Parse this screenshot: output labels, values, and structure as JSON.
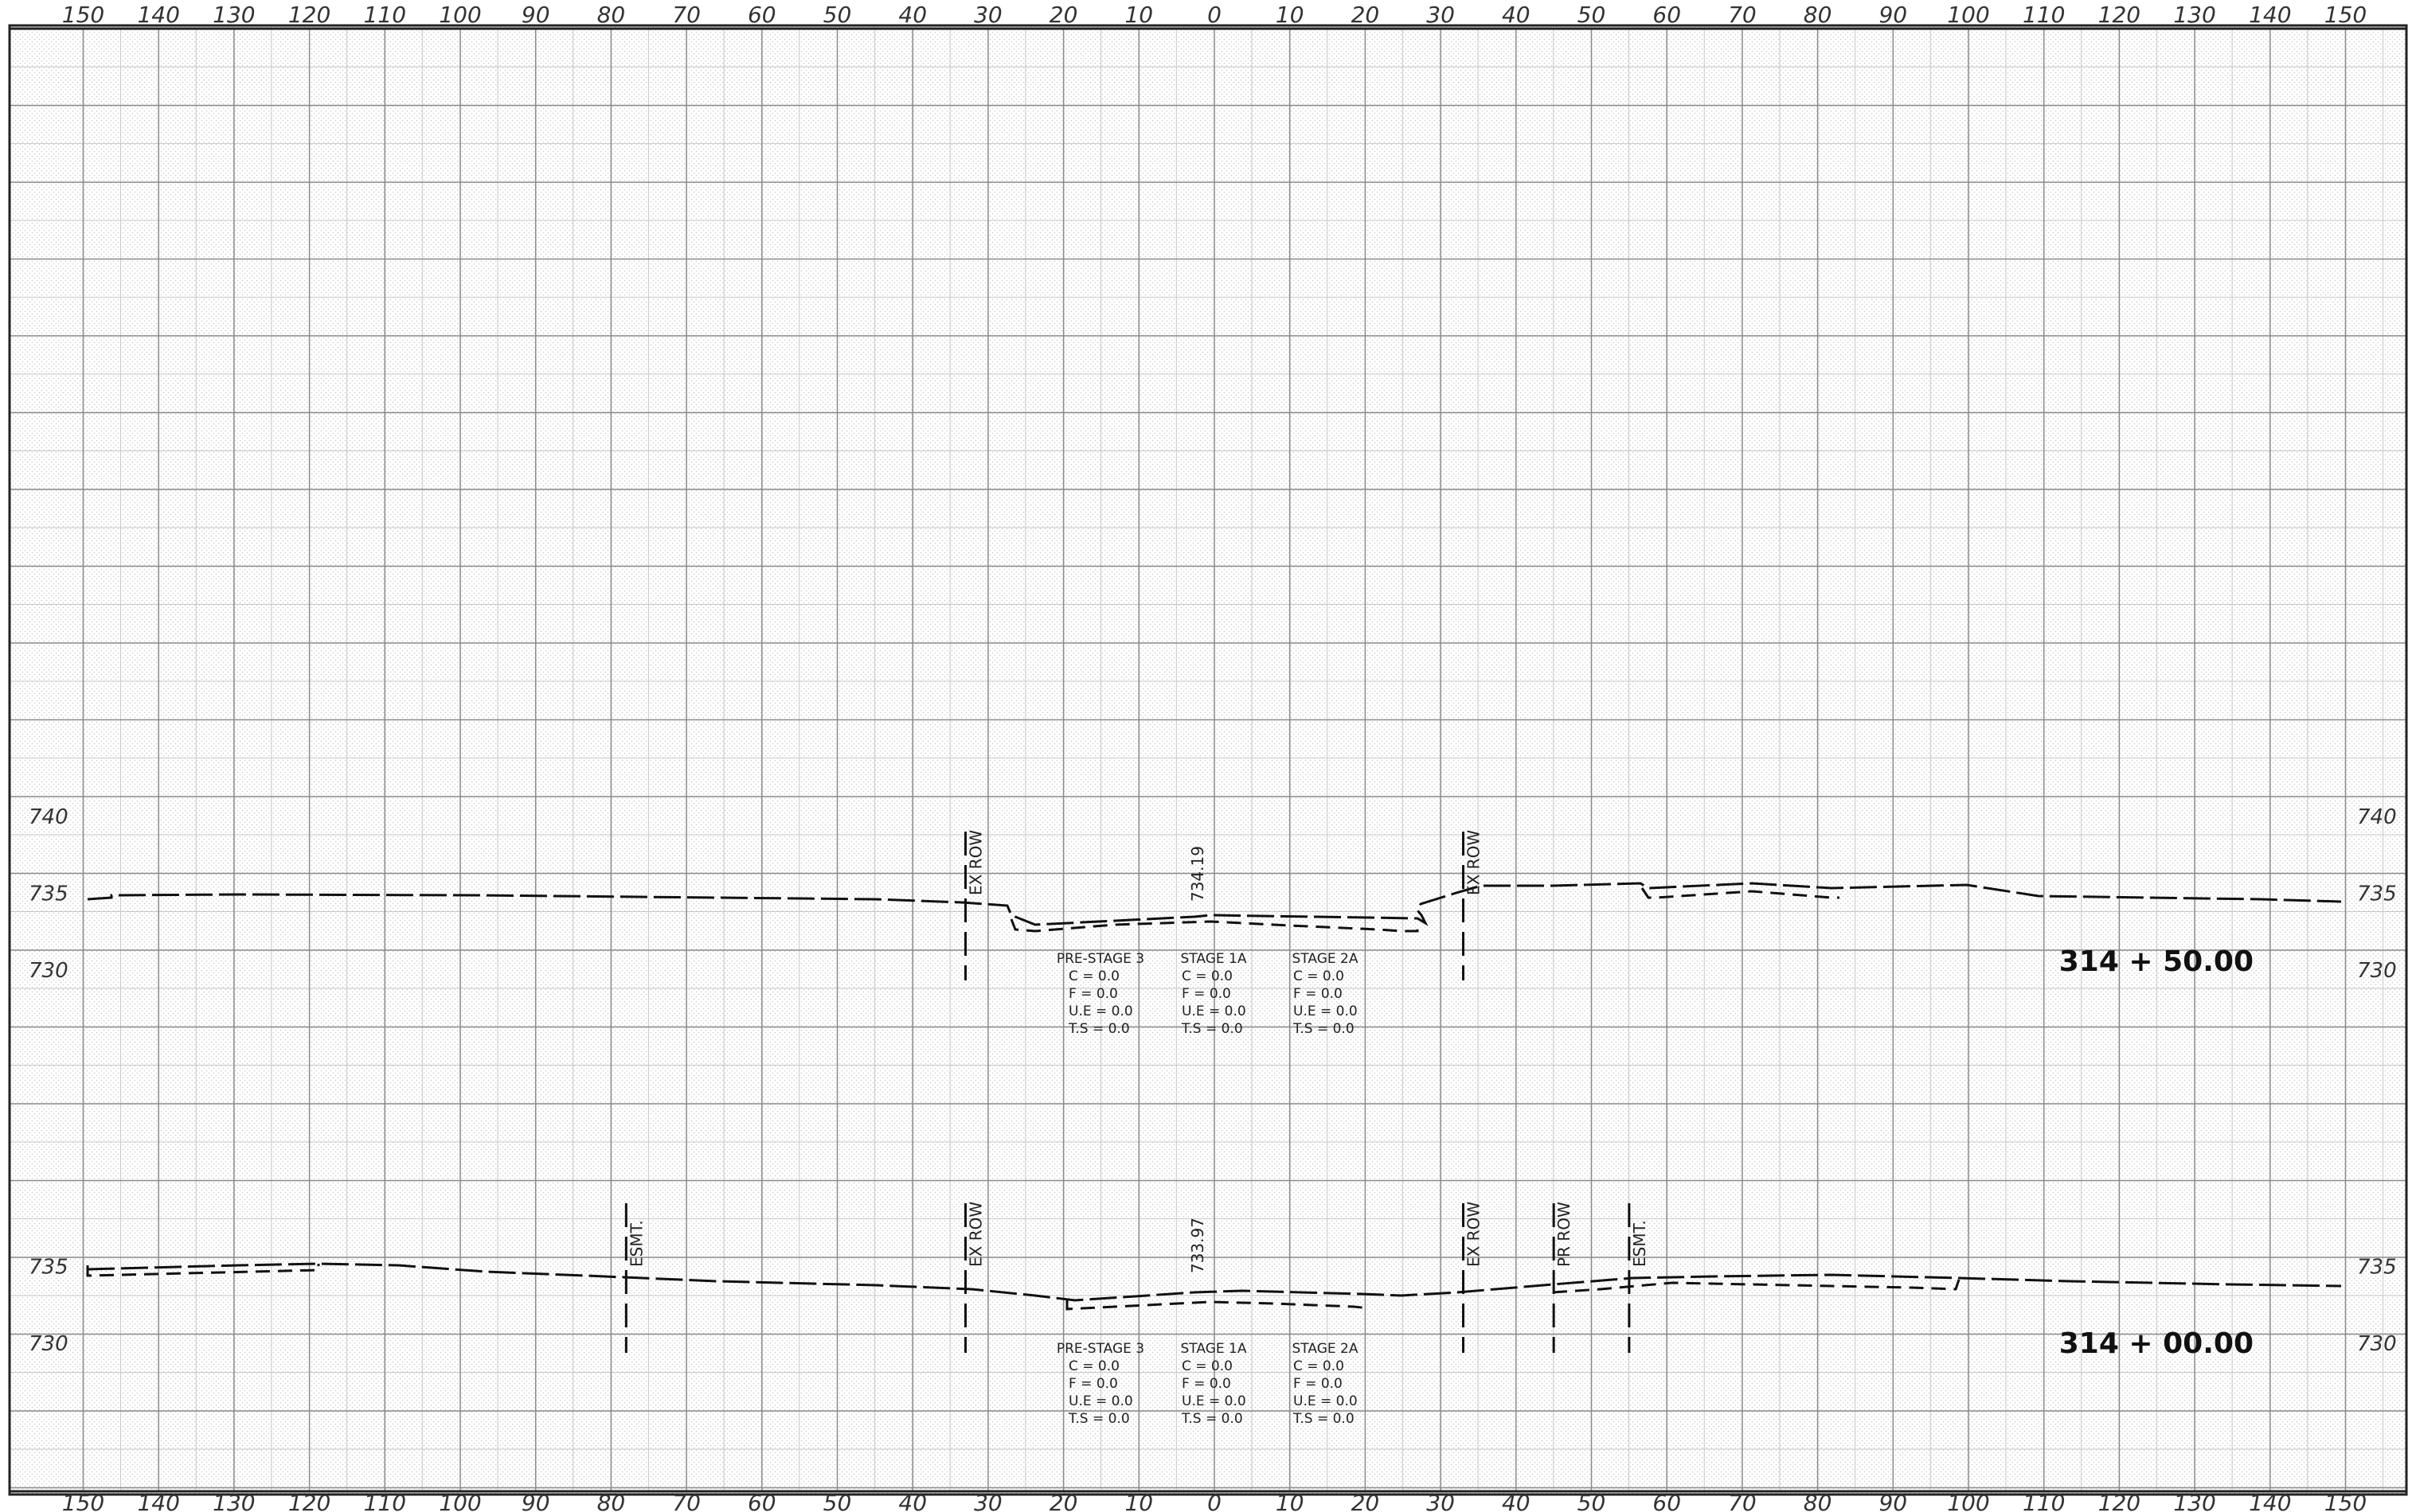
{
  "x_axis": {
    "ticks": [
      "150",
      "140",
      "130",
      "120",
      "110",
      "100",
      "90",
      "80",
      "70",
      "60",
      "50",
      "40",
      "30",
      "20",
      "10",
      "0",
      "10",
      "20",
      "30",
      "40",
      "50",
      "60",
      "70",
      "80",
      "90",
      "100",
      "110",
      "120",
      "130",
      "140",
      "150"
    ]
  },
  "sections": [
    {
      "station": "314 + 50.00",
      "elev_left": [
        "740",
        "735",
        "730"
      ],
      "elev_right": [
        "740",
        "735",
        "730"
      ],
      "markers": [
        {
          "label": "EX ROW",
          "x": -33
        },
        {
          "label": "EX ROW",
          "x": 33
        }
      ],
      "center_elev": "734.19",
      "stages": [
        {
          "name": "PRE-STAGE 3",
          "lines": [
            "C = 0.0",
            "F = 0.0",
            "U.E = 0.0",
            "T.S = 0.0"
          ]
        },
        {
          "name": "STAGE 1A",
          "lines": [
            "C = 0.0",
            "F = 0.0",
            "U.E = 0.0",
            "T.S = 0.0"
          ]
        },
        {
          "name": "STAGE 2A",
          "lines": [
            "C = 0.0",
            "F = 0.0",
            "U.E = 0.0",
            "T.S = 0.0"
          ]
        }
      ]
    },
    {
      "station": "314 + 00.00",
      "elev_left": [
        "735",
        "730"
      ],
      "elev_right": [
        "735",
        "730"
      ],
      "markers": [
        {
          "label": "ESMT.",
          "x": -78
        },
        {
          "label": "EX ROW",
          "x": -33
        },
        {
          "label": "EX ROW",
          "x": 33
        },
        {
          "label": "PR ROW",
          "x": 45
        },
        {
          "label": "ESMT.",
          "x": 55
        }
      ],
      "center_elev": "733.97",
      "stages": [
        {
          "name": "PRE-STAGE 3",
          "lines": [
            "C = 0.0",
            "F = 0.0",
            "U.E = 0.0",
            "T.S = 0.0"
          ]
        },
        {
          "name": "STAGE 1A",
          "lines": [
            "C = 0.0",
            "F = 0.0",
            "U.E = 0.0",
            "T.S = 0.0"
          ]
        },
        {
          "name": "STAGE 2A",
          "lines": [
            "C = 0.0",
            "F = 0.0",
            "U.E = 0.0",
            "T.S = 0.0"
          ]
        }
      ]
    }
  ],
  "colors": {
    "grid_major": "#8a8a8a",
    "grid_minor": "#c8c8c8",
    "line": "#111111"
  }
}
